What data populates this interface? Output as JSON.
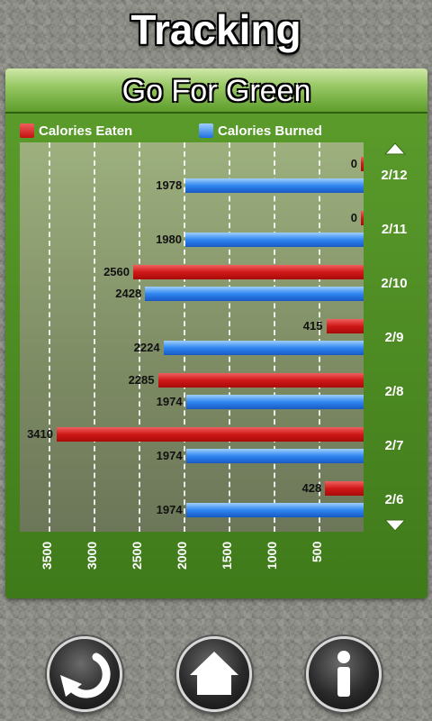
{
  "app": {
    "title": "Tracking"
  },
  "panel": {
    "title": "Go For Green"
  },
  "legend": {
    "eaten_label": "Calories Eaten",
    "burned_label": "Calories Burned"
  },
  "colors": {
    "eaten": "#d01818",
    "burned": "#2f86f0",
    "panel_green": "#4f8c22"
  },
  "chart_data": {
    "type": "bar",
    "orientation": "horizontal",
    "x_direction": "reversed",
    "categories": [
      "2/12",
      "2/11",
      "2/10",
      "2/9",
      "2/8",
      "2/7",
      "2/6"
    ],
    "series": [
      {
        "name": "Calories Eaten",
        "values": [
          0,
          0,
          2560,
          415,
          2285,
          3410,
          428
        ]
      },
      {
        "name": "Calories Burned",
        "values": [
          1978,
          1980,
          2428,
          2224,
          1974,
          1974,
          1974
        ]
      }
    ],
    "xticks": [
      "3500",
      "3000",
      "2500",
      "2000",
      "1500",
      "1000",
      "500"
    ],
    "xlim": [
      0,
      3400
    ],
    "grid": true,
    "legend_position": "top"
  },
  "icons": {
    "scroll_up": "up-triangle-icon",
    "scroll_down": "down-triangle-icon",
    "back": "refresh-arrow-icon",
    "home": "home-icon",
    "info": "info-icon"
  }
}
